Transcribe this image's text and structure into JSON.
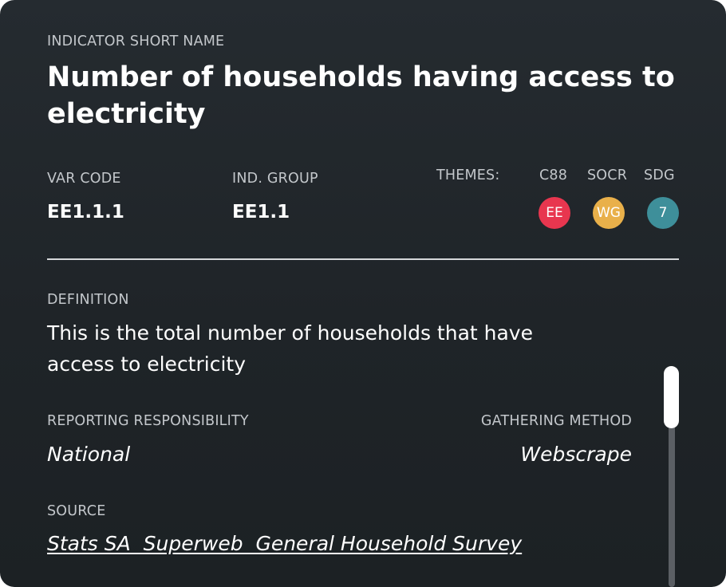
{
  "header": {
    "short_name_label": "INDICATOR SHORT NAME",
    "title": "Number of households having access to electricity"
  },
  "codes": {
    "var_code_label": "VAR CODE",
    "var_code": "EE1.1.1",
    "ind_group_label": "IND. GROUP",
    "ind_group": "EE1.1"
  },
  "themes": {
    "label": "THEMES:",
    "items": [
      {
        "header": "C88",
        "badge": "EE",
        "color": "#e8364f"
      },
      {
        "header": "SOCR",
        "badge": "WG",
        "color": "#e9b04a"
      },
      {
        "header": "SDG",
        "badge": "7",
        "color": "#3e8f9a"
      }
    ]
  },
  "definition": {
    "label": "DEFINITION",
    "text": "This is the total number of households that have access to electricity"
  },
  "reporting": {
    "label": "REPORTING RESPONSIBILITY",
    "value": "National"
  },
  "gathering": {
    "label": "GATHERING METHOD",
    "value": "Webscrape"
  },
  "source": {
    "label": "SOURCE",
    "link": "Stats SA  Superweb  General Household Survey"
  }
}
